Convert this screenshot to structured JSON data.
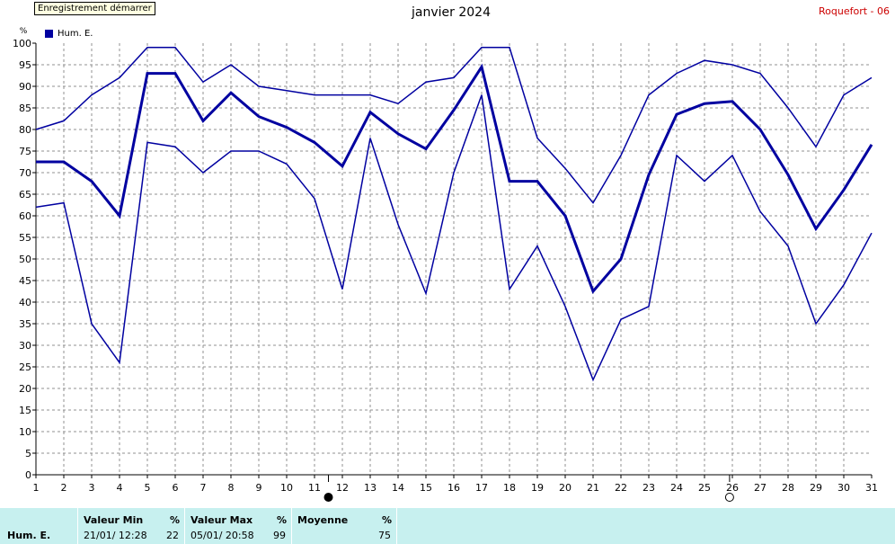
{
  "tooltip": "Enregistrement démarrer",
  "title": "janvier 2024",
  "station": "Roquefort - 06",
  "y_unit": "%",
  "legend": {
    "label": "Hum. E.",
    "color": "#0000a0"
  },
  "chart_data": {
    "type": "line",
    "x": [
      1,
      2,
      3,
      4,
      5,
      6,
      7,
      8,
      9,
      10,
      11,
      12,
      13,
      14,
      15,
      16,
      17,
      18,
      19,
      20,
      21,
      22,
      23,
      24,
      25,
      26,
      27,
      28,
      29,
      30,
      31
    ],
    "ylim": [
      0,
      100
    ],
    "y_ticks": [
      0,
      5,
      10,
      15,
      20,
      25,
      30,
      35,
      40,
      45,
      50,
      55,
      60,
      65,
      70,
      75,
      80,
      85,
      90,
      95,
      100
    ],
    "ylabel": "%",
    "grid": true,
    "legend_position": "top-left",
    "series": [
      {
        "name": "Hum. E.",
        "role": "max",
        "values": [
          80,
          82,
          88,
          92,
          99,
          99,
          91,
          95,
          90,
          89,
          88,
          88,
          88,
          86,
          91,
          92,
          99,
          99,
          78,
          71,
          63,
          74,
          88,
          93,
          96,
          95,
          93,
          85,
          76,
          88,
          92
        ]
      },
      {
        "name": "Hum. E.",
        "role": "mean",
        "values": [
          72.5,
          72.5,
          68,
          60,
          93,
          93,
          82,
          88.5,
          83,
          80.5,
          77,
          71.5,
          84,
          79,
          75.5,
          84.5,
          94.5,
          68,
          68,
          60,
          42.5,
          50,
          69.5,
          83.5,
          86,
          86.5,
          80,
          69.5,
          57,
          66,
          76.5
        ]
      },
      {
        "name": "Hum. E.",
        "role": "min",
        "values": [
          62,
          63,
          35,
          26,
          77,
          76,
          70,
          75,
          75,
          72,
          64,
          43,
          78,
          58,
          42,
          70,
          88,
          43,
          53,
          39,
          22,
          36,
          39,
          74,
          68,
          74,
          61,
          53,
          35,
          44,
          56
        ]
      }
    ],
    "markers": [
      {
        "type": "full-moon-filled",
        "x": 11.5
      },
      {
        "type": "new-moon-empty",
        "x": 25.9
      }
    ]
  },
  "stats": {
    "row_label": "Hum. E.",
    "min": {
      "header": "Valeur Min",
      "unit": "%",
      "when": "21/01/  12:28",
      "value": "22"
    },
    "max": {
      "header": "Valeur Max",
      "unit": "%",
      "when": "05/01/  20:58",
      "value": "99"
    },
    "avg": {
      "header": "Moyenne",
      "unit": "%",
      "value": "75"
    }
  }
}
